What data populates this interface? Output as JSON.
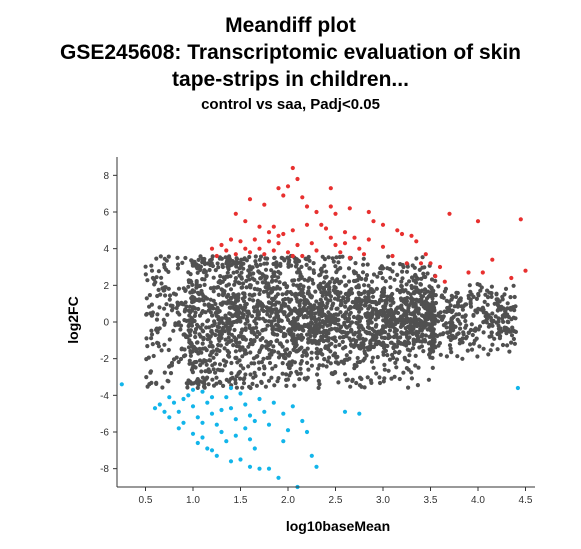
{
  "title": {
    "line1": "Meandiff plot",
    "line2": "GSE245608: Transcriptomic evaluation of skin",
    "line3": "tape-strips in children...",
    "subtitle": "control vs saa, Padj<0.05"
  },
  "chart_data": {
    "type": "scatter",
    "xlabel": "log10baseMean",
    "ylabel": "log2FC",
    "xlim": [
      0.2,
      4.6
    ],
    "ylim": [
      -9,
      9
    ],
    "xticks": [
      "0.5",
      "1.0",
      "1.5",
      "2.0",
      "2.5",
      "3.0",
      "3.5",
      "4.0",
      "4.5"
    ],
    "yticks": [
      "-8",
      "-6",
      "-4",
      "-2",
      "0",
      "2",
      "4",
      "6",
      "8"
    ],
    "grid": false,
    "legend": "none",
    "colors": {
      "neutral": "#505050",
      "up": "#e8302f",
      "down": "#12b5ea"
    },
    "series": [
      {
        "color_key": "up",
        "points": [
          [
            2.05,
            8.4
          ],
          [
            2.1,
            7.8
          ],
          [
            2.0,
            7.4
          ],
          [
            1.9,
            7.3
          ],
          [
            1.95,
            6.9
          ],
          [
            2.15,
            6.8
          ],
          [
            2.45,
            7.3
          ],
          [
            1.6,
            6.7
          ],
          [
            1.75,
            6.4
          ],
          [
            2.2,
            6.3
          ],
          [
            2.45,
            6.3
          ],
          [
            2.65,
            6.2
          ],
          [
            2.85,
            6.0
          ],
          [
            2.9,
            5.5
          ],
          [
            3.0,
            5.3
          ],
          [
            2.3,
            6.0
          ],
          [
            2.5,
            5.9
          ],
          [
            1.45,
            5.9
          ],
          [
            1.55,
            5.5
          ],
          [
            1.7,
            5.2
          ],
          [
            1.8,
            4.9
          ],
          [
            1.85,
            5.2
          ],
          [
            1.9,
            4.7
          ],
          [
            1.95,
            4.8
          ],
          [
            2.05,
            5.0
          ],
          [
            2.2,
            5.3
          ],
          [
            2.35,
            5.3
          ],
          [
            2.4,
            5.1
          ],
          [
            2.6,
            4.9
          ],
          [
            2.7,
            4.6
          ],
          [
            2.85,
            4.5
          ],
          [
            3.15,
            5.0
          ],
          [
            3.2,
            4.8
          ],
          [
            3.3,
            4.7
          ],
          [
            3.35,
            4.4
          ],
          [
            3.45,
            3.7
          ],
          [
            3.5,
            3.2
          ],
          [
            3.6,
            3.0
          ],
          [
            3.55,
            2.5
          ],
          [
            3.65,
            2.2
          ],
          [
            3.7,
            5.9
          ],
          [
            3.9,
            2.7
          ],
          [
            4.0,
            5.5
          ],
          [
            4.05,
            2.7
          ],
          [
            4.15,
            3.4
          ],
          [
            4.35,
            2.4
          ],
          [
            4.45,
            5.6
          ],
          [
            4.5,
            2.8
          ],
          [
            1.3,
            4.2
          ],
          [
            1.4,
            4.5
          ],
          [
            1.5,
            4.4
          ],
          [
            1.55,
            4.0
          ],
          [
            1.6,
            3.8
          ],
          [
            1.65,
            4.5
          ],
          [
            1.7,
            4.0
          ],
          [
            1.75,
            3.7
          ],
          [
            1.8,
            4.4
          ],
          [
            1.85,
            3.9
          ],
          [
            1.9,
            4.3
          ],
          [
            2.0,
            3.8
          ],
          [
            2.05,
            3.6
          ],
          [
            2.1,
            4.2
          ],
          [
            2.15,
            3.6
          ],
          [
            2.25,
            4.3
          ],
          [
            2.3,
            3.9
          ],
          [
            2.5,
            4.2
          ],
          [
            2.55,
            3.8
          ],
          [
            2.75,
            4.0
          ],
          [
            2.8,
            3.7
          ],
          [
            3.0,
            4.1
          ],
          [
            3.1,
            3.6
          ],
          [
            3.25,
            3.2
          ],
          [
            3.4,
            3.2
          ],
          [
            1.35,
            3.9
          ],
          [
            1.45,
            3.7
          ],
          [
            2.45,
            4.6
          ],
          [
            2.6,
            4.3
          ],
          [
            1.2,
            4.0
          ],
          [
            1.25,
            3.6
          ],
          [
            2.65,
            3.5
          ]
        ]
      },
      {
        "color_key": "down",
        "points": [
          [
            0.25,
            -3.4
          ],
          [
            0.6,
            -4.7
          ],
          [
            0.65,
            -4.5
          ],
          [
            0.7,
            -4.9
          ],
          [
            0.75,
            -5.2
          ],
          [
            0.8,
            -4.4
          ],
          [
            0.85,
            -4.9
          ],
          [
            0.9,
            -5.5
          ],
          [
            0.95,
            -4.0
          ],
          [
            1.0,
            -4.6
          ],
          [
            1.05,
            -5.2
          ],
          [
            1.1,
            -3.8
          ],
          [
            1.15,
            -4.4
          ],
          [
            1.2,
            -5.0
          ],
          [
            1.25,
            -5.6
          ],
          [
            1.3,
            -6.0
          ],
          [
            1.35,
            -4.1
          ],
          [
            1.4,
            -4.7
          ],
          [
            1.45,
            -5.3
          ],
          [
            1.5,
            -3.9
          ],
          [
            1.55,
            -4.5
          ],
          [
            1.6,
            -5.1
          ],
          [
            1.7,
            -4.2
          ],
          [
            1.75,
            -4.9
          ],
          [
            1.8,
            -5.6
          ],
          [
            1.85,
            -4.4
          ],
          [
            1.95,
            -5.0
          ],
          [
            2.05,
            -4.6
          ],
          [
            2.15,
            -5.4
          ],
          [
            2.2,
            -6.0
          ],
          [
            1.0,
            -6.1
          ],
          [
            1.05,
            -6.6
          ],
          [
            1.1,
            -6.3
          ],
          [
            1.15,
            -6.9
          ],
          [
            1.2,
            -7.0
          ],
          [
            1.25,
            -7.3
          ],
          [
            1.35,
            -6.5
          ],
          [
            1.4,
            -7.6
          ],
          [
            1.5,
            -7.5
          ],
          [
            1.6,
            -7.9
          ],
          [
            1.65,
            -6.9
          ],
          [
            1.7,
            -8.0
          ],
          [
            1.8,
            -8.0
          ],
          [
            1.9,
            -8.5
          ],
          [
            2.1,
            -9.0
          ],
          [
            2.25,
            -7.3
          ],
          [
            2.3,
            -7.9
          ],
          [
            2.6,
            -4.9
          ],
          [
            2.75,
            -5.0
          ],
          [
            4.42,
            -3.6
          ],
          [
            0.9,
            -4.2
          ],
          [
            1.0,
            -3.7
          ],
          [
            1.1,
            -5.5
          ],
          [
            1.3,
            -4.8
          ],
          [
            1.45,
            -6.2
          ],
          [
            1.55,
            -5.8
          ],
          [
            1.6,
            -6.4
          ],
          [
            1.65,
            -5.4
          ],
          [
            0.85,
            -5.8
          ],
          [
            1.2,
            -4.1
          ],
          [
            1.4,
            -3.6
          ],
          [
            0.75,
            -4.1
          ],
          [
            1.95,
            -6.5
          ],
          [
            2.0,
            -5.9
          ]
        ]
      }
    ]
  }
}
